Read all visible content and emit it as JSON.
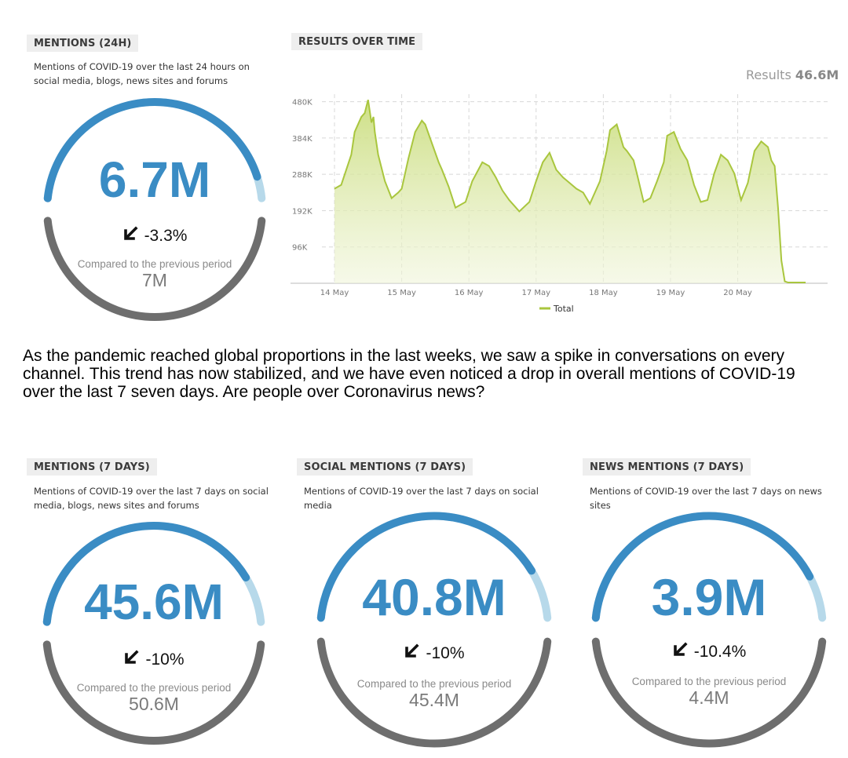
{
  "colors": {
    "accent_blue": "#3a8cc4",
    "light_blue": "#b7d9ea",
    "ring_grey": "#6e6e6e",
    "chart_green": "#a9c63e",
    "chart_fill": "#dbe8a7"
  },
  "top_gauge": {
    "label": "MENTIONS (24H)",
    "description_line1": "Mentions of COVID-19 over the last 24 hours on",
    "description_line2": "social media, blogs, news sites and forums",
    "value": "6.7M",
    "change": "-3.3%",
    "change_icon": "arrow-down-left-icon",
    "fill_fraction": 0.93,
    "compare_label": "Compared to the previous period",
    "previous": "7M"
  },
  "results_panel": {
    "label": "RESULTS OVER TIME",
    "total_label": "Results",
    "total_value": "46.6M",
    "legend": "Total"
  },
  "chart_data": {
    "type": "area",
    "title": "RESULTS OVER TIME",
    "xlabel": "",
    "ylabel": "",
    "y_ticks": [
      "96K",
      "192K",
      "288K",
      "384K",
      "480K"
    ],
    "x_ticks": [
      "14 May",
      "15 May",
      "16 May",
      "17 May",
      "18 May",
      "19 May",
      "20 May"
    ],
    "ylim": [
      0,
      500000
    ],
    "x_range": [
      0,
      7.01
    ],
    "grid": true,
    "legend_position": "bottom",
    "series": [
      {
        "name": "Total",
        "x": [
          0,
          0.1,
          0.25,
          0.3,
          0.35,
          0.4,
          0.45,
          0.5,
          0.55,
          0.58,
          0.6,
          0.65,
          0.75,
          0.85,
          0.95,
          1.0,
          1.1,
          1.2,
          1.3,
          1.35,
          1.45,
          1.55,
          1.6,
          1.7,
          1.8,
          1.95,
          2.05,
          2.2,
          2.3,
          2.4,
          2.5,
          2.6,
          2.75,
          2.9,
          3.0,
          3.1,
          3.2,
          3.3,
          3.4,
          3.5,
          3.6,
          3.7,
          3.8,
          3.95,
          4.05,
          4.1,
          4.2,
          4.3,
          4.35,
          4.45,
          4.5,
          4.6,
          4.7,
          4.8,
          4.9,
          4.95,
          5.05,
          5.15,
          5.25,
          5.35,
          5.45,
          5.55,
          5.65,
          5.75,
          5.85,
          5.95,
          6.05,
          6.15,
          6.25,
          6.35,
          6.45,
          6.5,
          6.55,
          6.6,
          6.65,
          6.7,
          6.75,
          6.8,
          7.01
        ],
        "y": [
          250000,
          260000,
          340000,
          400000,
          420000,
          440000,
          450000,
          485000,
          425000,
          440000,
          400000,
          340000,
          270000,
          225000,
          240000,
          250000,
          330000,
          400000,
          430000,
          420000,
          370000,
          320000,
          300000,
          255000,
          200000,
          215000,
          270000,
          320000,
          310000,
          280000,
          245000,
          220000,
          190000,
          215000,
          270000,
          320000,
          345000,
          300000,
          280000,
          265000,
          250000,
          240000,
          210000,
          270000,
          350000,
          405000,
          420000,
          360000,
          350000,
          325000,
          290000,
          215000,
          225000,
          270000,
          320000,
          390000,
          400000,
          355000,
          325000,
          260000,
          215000,
          220000,
          290000,
          340000,
          325000,
          290000,
          220000,
          265000,
          350000,
          375000,
          360000,
          325000,
          310000,
          200000,
          60000,
          5000,
          2000,
          2000,
          2000
        ]
      }
    ]
  },
  "paragraph": "As the pandemic reached global proportions in the last weeks, we saw a spike in conversations on every channel. This trend has now stabilized, and we have even noticed a drop in overall mentions of COVID-19 over the last 7 seven days. Are people over Coronavirus news?",
  "bottom_gauges": [
    {
      "label": "MENTIONS (7 DAYS)",
      "description_line1": "Mentions of COVID-19 over the last 7 days on social",
      "description_line2": "media, blogs, news sites and forums",
      "value": "45.6M",
      "change": "-10%",
      "change_icon": "arrow-down-left-icon",
      "fill_fraction": 0.85,
      "compare_label": "Compared to the previous period",
      "previous": "50.6M"
    },
    {
      "label": "SOCIAL MENTIONS (7 DAYS)",
      "description_line1": "Mentions of COVID-19 over the last 7 days on social",
      "description_line2": "media",
      "value": "40.8M",
      "change": "-10%",
      "change_icon": "arrow-down-left-icon",
      "fill_fraction": 0.85,
      "compare_label": "Compared to the previous period",
      "previous": "45.4M"
    },
    {
      "label": "NEWS MENTIONS (7 DAYS)",
      "description_line1": "Mentions of COVID-19 over the last 7 days on news",
      "description_line2": "sites",
      "value": "3.9M",
      "change": "-10.4%",
      "change_icon": "arrow-down-left-icon",
      "fill_fraction": 0.87,
      "compare_label": "Compared to the previous period",
      "previous": "4.4M"
    }
  ]
}
